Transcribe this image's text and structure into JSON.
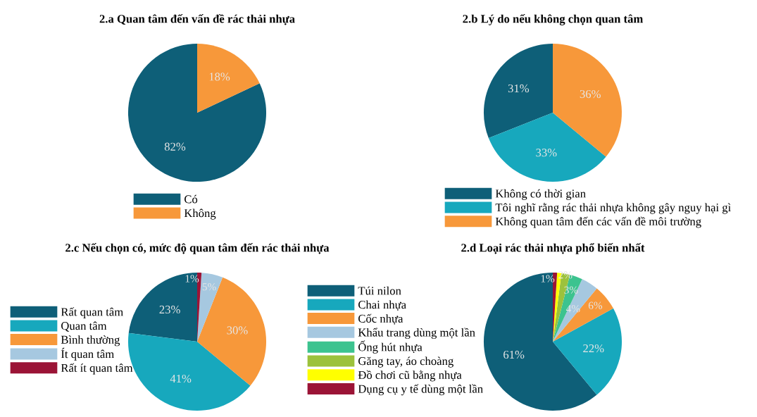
{
  "chart_data": [
    {
      "type": "pie",
      "title": "2.a Quan tâm đến vấn đề rác thải nhựa",
      "categories": [
        "Có",
        "Không"
      ],
      "values": [
        82,
        18
      ],
      "colors": [
        "#0e5f78",
        "#f7983a"
      ],
      "value_labels": [
        "82%",
        "18%"
      ],
      "legend": "bottom"
    },
    {
      "type": "pie",
      "title": "2.b Lý do nếu không chọn quan tâm",
      "categories": [
        "Không có thời gian",
        "Tôi nghĩ rằng rác thải nhựa không gây nguy hại gì",
        "Không quan tâm đến các vấn đề môi trường"
      ],
      "values": [
        31,
        33,
        36
      ],
      "colors": [
        "#0e5f78",
        "#17a8bd",
        "#f7983a"
      ],
      "value_labels": [
        "31%",
        "33%",
        "36%"
      ],
      "legend": "bottom"
    },
    {
      "type": "pie",
      "title": "2.c Nếu chọn có, mức độ quan tâm đến rác thải nhựa",
      "categories": [
        "Rất quan tâm",
        "Quan tâm",
        "Bình thường",
        "Ít quan tâm",
        "Rất ít quan tâm"
      ],
      "values": [
        23,
        41,
        30,
        5,
        1
      ],
      "colors": [
        "#0e5f78",
        "#17a8bd",
        "#f7983a",
        "#a6c8e0",
        "#9b1436"
      ],
      "value_labels": [
        "23%",
        "41%",
        "30%",
        "5%",
        "1%"
      ],
      "legend": "left"
    },
    {
      "type": "pie",
      "title": "2.d Loại rác thải nhựa phổ biến nhất",
      "categories": [
        "Túi nilon",
        "Chai nhựa",
        "Cốc nhựa",
        "Khẩu trang dùng một lần",
        "Ống hút nhựa",
        "Găng tay, áo choàng",
        "Đồ chơi cũ bằng nhựa",
        "Dụng cụ y tế dùng một lần"
      ],
      "values": [
        61,
        22,
        6,
        4,
        3,
        2,
        1,
        1
      ],
      "colors": [
        "#0e5f78",
        "#17a8bd",
        "#f7983a",
        "#a6c8e0",
        "#3cc38f",
        "#9cc23c",
        "#ffff00",
        "#9b1436"
      ],
      "value_labels": [
        "61%",
        "22%",
        "6%",
        "4%",
        "3%",
        "2%",
        null,
        "1%"
      ],
      "legend": "left"
    }
  ]
}
